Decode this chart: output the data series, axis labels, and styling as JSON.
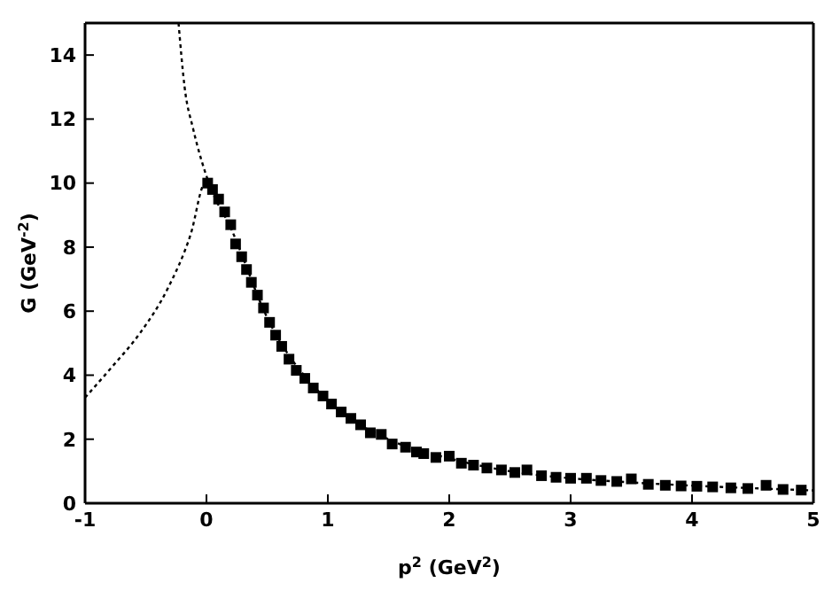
{
  "chart_data": {
    "type": "scatter",
    "xlabel": "p$^{2}$ (GeV$^{2}$)",
    "ylabel": "G (GeV$^{-2}$)",
    "xlim": [
      -1,
      5
    ],
    "xticks": [
      -1,
      0,
      1,
      2,
      3,
      4,
      5
    ],
    "ylim": [
      0,
      15
    ],
    "yticks": [
      0,
      2,
      4,
      6,
      8,
      10,
      12,
      14
    ],
    "series": [
      {
        "marker": "square",
        "color": "#000000",
        "x": [
          0.01,
          0.05,
          0.1,
          0.15,
          0.2,
          0.24,
          0.29,
          0.33,
          0.37,
          0.42,
          0.47,
          0.52,
          0.57,
          0.62,
          0.68,
          0.74,
          0.81,
          0.88,
          0.96,
          1.03,
          1.11,
          1.19,
          1.27,
          1.35,
          1.44,
          1.53,
          1.64,
          1.73,
          1.79,
          1.89,
          2.0,
          2.1,
          2.2,
          2.31,
          2.43,
          2.54,
          2.64,
          2.76,
          2.88,
          3.0,
          3.13,
          3.25,
          3.38,
          3.5,
          3.64,
          3.78,
          3.91,
          4.04,
          4.17,
          4.32,
          4.46,
          4.61,
          4.75,
          4.9
        ],
        "values": [
          10.0,
          9.8,
          9.5,
          9.1,
          8.7,
          8.1,
          7.7,
          7.3,
          6.9,
          6.5,
          6.1,
          5.65,
          5.25,
          4.9,
          4.5,
          4.15,
          3.9,
          3.6,
          3.35,
          3.1,
          2.85,
          2.65,
          2.45,
          2.2,
          2.15,
          1.85,
          1.75,
          1.6,
          1.55,
          1.43,
          1.47,
          1.25,
          1.19,
          1.1,
          1.04,
          0.96,
          1.04,
          0.86,
          0.81,
          0.78,
          0.78,
          0.71,
          0.68,
          0.76,
          0.59,
          0.56,
          0.54,
          0.53,
          0.51,
          0.48,
          0.46,
          0.56,
          0.43,
          0.41
        ]
      },
      {
        "type": "line",
        "marker": "none",
        "line_style": "dotted",
        "color": "#000000",
        "x": [
          -1,
          -0.78,
          -0.55,
          -0.32,
          -0.13,
          -0.01,
          0.03
        ],
        "values": [
          3.3,
          4.25,
          5.3,
          6.7,
          8.4,
          10.0,
          9.9
        ]
      },
      {
        "type": "line",
        "marker": "none",
        "line_style": "dotted",
        "color": "#000000",
        "x": [
          -0.23,
          -0.18,
          -0.11,
          -0.04,
          0.03,
          0.2,
          0.5,
          1,
          1.5,
          2,
          2.5,
          3,
          3.5,
          4,
          4.5,
          5
        ],
        "values": [
          15.0,
          13.0,
          11.7,
          10.7,
          9.9,
          8.6,
          5.8,
          3.2,
          2.0,
          1.4,
          1.0,
          0.78,
          0.65,
          0.55,
          0.47,
          0.4
        ]
      }
    ]
  }
}
